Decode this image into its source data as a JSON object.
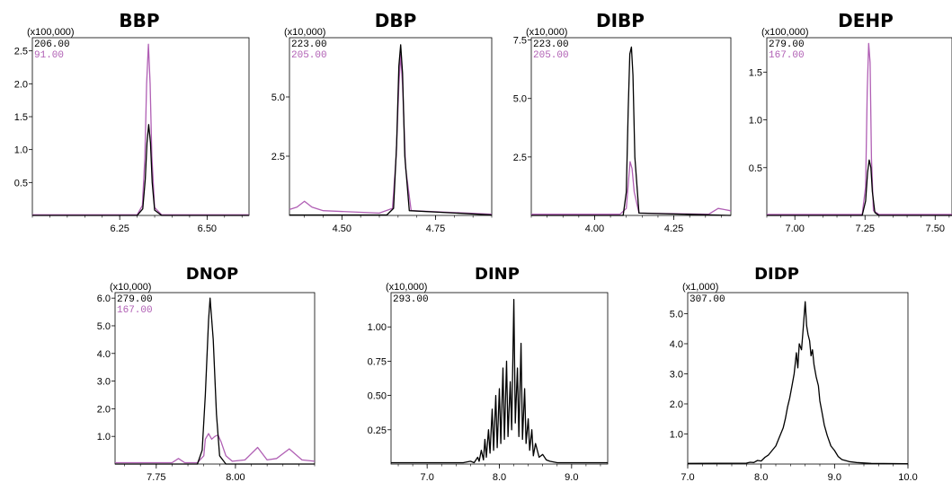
{
  "colors": {
    "trace_black": "#000000",
    "trace_purple": "#b05fb4",
    "axis": "#000000"
  },
  "chart_data": [
    {
      "type": "line",
      "title": "BBP",
      "multiplier": "(x100,000)",
      "xlim": [
        6.0,
        6.62
      ],
      "ylim": [
        0,
        2.7
      ],
      "xticks": [
        6.25,
        6.5
      ],
      "xtick_labels": [
        "6.25",
        "6.50"
      ],
      "yticks": [
        0.5,
        1.0,
        1.5,
        2.0,
        2.5
      ],
      "ytick_labels": [
        "0.5",
        "1.0",
        "1.5",
        "2.0",
        "2.5"
      ],
      "ions": [
        {
          "label": "206.00",
          "color": "#000000"
        },
        {
          "label": "91.00",
          "color": "#b05fb4"
        }
      ],
      "series": [
        {
          "color": "#b05fb4",
          "x": [
            6.0,
            6.3,
            6.315,
            6.322,
            6.327,
            6.332,
            6.337,
            6.342,
            6.35,
            6.37,
            6.62
          ],
          "y": [
            0.01,
            0.01,
            0.15,
            0.9,
            2.0,
            2.6,
            2.0,
            0.9,
            0.12,
            0.01,
            0.01
          ]
        },
        {
          "color": "#000000",
          "x": [
            6.0,
            6.3,
            6.316,
            6.323,
            6.328,
            6.333,
            6.338,
            6.343,
            6.35,
            6.37,
            6.62
          ],
          "y": [
            0.0,
            0.0,
            0.1,
            0.55,
            1.1,
            1.38,
            1.1,
            0.5,
            0.08,
            0.0,
            0.0
          ]
        }
      ]
    },
    {
      "type": "line",
      "title": "DBP",
      "multiplier": "(x10,000)",
      "xlim": [
        4.36,
        4.9
      ],
      "ylim": [
        0,
        7.5
      ],
      "xticks": [
        4.5,
        4.75
      ],
      "xtick_labels": [
        "4.50",
        "4.75"
      ],
      "yticks": [
        2.5,
        5.0
      ],
      "ytick_labels": [
        "2.5",
        "5.0"
      ],
      "ions": [
        {
          "label": "223.00",
          "color": "#000000"
        },
        {
          "label": "205.00",
          "color": "#b05fb4"
        }
      ],
      "series": [
        {
          "color": "#b05fb4",
          "x": [
            4.36,
            4.38,
            4.4,
            4.42,
            4.45,
            4.6,
            4.635,
            4.645,
            4.652,
            4.657,
            4.662,
            4.67,
            4.685,
            4.9
          ],
          "y": [
            0.25,
            0.35,
            0.6,
            0.35,
            0.2,
            0.1,
            0.3,
            2.5,
            5.5,
            6.8,
            5.5,
            2.0,
            0.2,
            0.05
          ]
        },
        {
          "color": "#000000",
          "x": [
            4.36,
            4.62,
            4.638,
            4.646,
            4.652,
            4.657,
            4.662,
            4.668,
            4.68,
            4.9
          ],
          "y": [
            0.02,
            0.02,
            0.3,
            3.0,
            6.3,
            7.2,
            6.0,
            2.5,
            0.2,
            0.02
          ]
        }
      ]
    },
    {
      "type": "line",
      "title": "DIBP",
      "multiplier": "(x10,000)",
      "xlim": [
        3.8,
        4.43
      ],
      "ylim": [
        0,
        7.6
      ],
      "xticks": [
        4.0,
        4.25
      ],
      "xtick_labels": [
        "4.00",
        "4.25"
      ],
      "yticks": [
        2.5,
        5.0,
        7.5
      ],
      "ytick_labels": [
        "2.5",
        "5.0",
        "7.5"
      ],
      "ions": [
        {
          "label": "223.00",
          "color": "#000000"
        },
        {
          "label": "205.00",
          "color": "#b05fb4"
        }
      ],
      "series": [
        {
          "color": "#b05fb4",
          "x": [
            3.8,
            4.08,
            4.1,
            4.107,
            4.112,
            4.118,
            4.125,
            4.14,
            4.36,
            4.39,
            4.41,
            4.43
          ],
          "y": [
            0.05,
            0.05,
            0.3,
            1.5,
            2.3,
            2.0,
            1.0,
            0.1,
            0.05,
            0.3,
            0.25,
            0.2
          ]
        },
        {
          "color": "#000000",
          "x": [
            3.8,
            4.09,
            4.1,
            4.106,
            4.111,
            4.116,
            4.121,
            4.127,
            4.14,
            4.43
          ],
          "y": [
            0.0,
            0.0,
            1.0,
            4.5,
            6.9,
            7.2,
            6.0,
            2.5,
            0.1,
            0.0
          ]
        }
      ]
    },
    {
      "type": "line",
      "title": "DEHP",
      "multiplier": "(x100,000)",
      "xlim": [
        6.9,
        7.56
      ],
      "ylim": [
        0,
        1.86
      ],
      "xticks": [
        7.0,
        7.25,
        7.5
      ],
      "xtick_labels": [
        "7.00",
        "7.25",
        "7.50"
      ],
      "yticks": [
        0.5,
        1.0,
        1.5
      ],
      "ytick_labels": [
        "0.5",
        "1.0",
        "1.5"
      ],
      "ions": [
        {
          "label": "279.00",
          "color": "#000000"
        },
        {
          "label": "167.00",
          "color": "#b05fb4"
        }
      ],
      "series": [
        {
          "color": "#b05fb4",
          "x": [
            6.9,
            7.24,
            7.252,
            7.258,
            7.263,
            7.268,
            7.273,
            7.28,
            7.3,
            7.56
          ],
          "y": [
            0.01,
            0.01,
            0.3,
            1.3,
            1.8,
            1.6,
            0.6,
            0.05,
            0.01,
            0.01
          ]
        },
        {
          "color": "#000000",
          "x": [
            6.9,
            7.24,
            7.252,
            7.259,
            7.265,
            7.271,
            7.276,
            7.285,
            7.3,
            7.56
          ],
          "y": [
            0.0,
            0.0,
            0.15,
            0.45,
            0.58,
            0.5,
            0.25,
            0.03,
            0.0,
            0.0
          ]
        }
      ]
    },
    {
      "type": "line",
      "title": "DNOP",
      "multiplier": "(x10,000)",
      "xlim": [
        7.62,
        8.25
      ],
      "ylim": [
        0,
        6.2
      ],
      "xticks": [
        7.75,
        8.0
      ],
      "xtick_labels": [
        "7.75",
        "8.00"
      ],
      "yticks": [
        1.0,
        2.0,
        3.0,
        4.0,
        5.0,
        6.0
      ],
      "ytick_labels": [
        "1.0",
        "2.0",
        "3.0",
        "4.0",
        "5.0",
        "6.0"
      ],
      "ions": [
        {
          "label": "279.00",
          "color": "#000000"
        },
        {
          "label": "167.00",
          "color": "#b05fb4"
        }
      ],
      "series": [
        {
          "color": "#b05fb4",
          "x": [
            7.62,
            7.8,
            7.82,
            7.84,
            7.88,
            7.9,
            7.905,
            7.915,
            7.925,
            7.935,
            7.945,
            7.955,
            7.97,
            7.99,
            8.03,
            8.07,
            8.1,
            8.13,
            8.17,
            8.21,
            8.25
          ],
          "y": [
            0.05,
            0.05,
            0.2,
            0.05,
            0.05,
            0.3,
            0.9,
            1.1,
            0.9,
            1.0,
            1.05,
            0.8,
            0.3,
            0.1,
            0.15,
            0.6,
            0.15,
            0.2,
            0.55,
            0.15,
            0.1
          ]
        },
        {
          "color": "#000000",
          "x": [
            7.62,
            7.88,
            7.895,
            7.905,
            7.915,
            7.92,
            7.93,
            7.94,
            7.95,
            7.97,
            8.25
          ],
          "y": [
            0.0,
            0.0,
            0.5,
            2.5,
            5.2,
            6.0,
            4.5,
            1.8,
            0.3,
            0.0,
            0.0
          ]
        }
      ]
    },
    {
      "type": "line",
      "title": "DINP",
      "multiplier": "(x10,000)",
      "xlim": [
        6.5,
        9.5
      ],
      "ylim": [
        0,
        1.25
      ],
      "xticks": [
        7.0,
        8.0,
        9.0
      ],
      "xtick_labels": [
        "7.0",
        "8.0",
        "9.0"
      ],
      "yticks": [
        0.25,
        0.5,
        0.75,
        1.0
      ],
      "ytick_labels": [
        "0.25",
        "0.50",
        "0.75",
        "1.00"
      ],
      "ions": [
        {
          "label": "293.00",
          "color": "#000000"
        }
      ],
      "series": [
        {
          "color": "#000000",
          "x": [
            6.5,
            7.5,
            7.6,
            7.65,
            7.7,
            7.72,
            7.75,
            7.78,
            7.8,
            7.82,
            7.85,
            7.87,
            7.9,
            7.92,
            7.95,
            7.97,
            8.0,
            8.02,
            8.05,
            8.07,
            8.1,
            8.12,
            8.15,
            8.17,
            8.2,
            8.22,
            8.25,
            8.27,
            8.3,
            8.32,
            8.35,
            8.37,
            8.4,
            8.42,
            8.45,
            8.47,
            8.5,
            8.55,
            8.6,
            8.65,
            8.7,
            8.8,
            9.0,
            9.5
          ],
          "y": [
            0.01,
            0.01,
            0.02,
            0.01,
            0.05,
            0.02,
            0.1,
            0.03,
            0.18,
            0.05,
            0.25,
            0.08,
            0.4,
            0.1,
            0.5,
            0.12,
            0.55,
            0.15,
            0.7,
            0.18,
            0.75,
            0.2,
            0.6,
            0.25,
            1.2,
            0.3,
            0.7,
            0.2,
            0.88,
            0.18,
            0.55,
            0.15,
            0.33,
            0.1,
            0.25,
            0.06,
            0.15,
            0.05,
            0.07,
            0.03,
            0.02,
            0.01,
            0.01,
            0.01
          ]
        }
      ]
    },
    {
      "type": "line",
      "title": "DIDP",
      "multiplier": "(x1,000)",
      "xlim": [
        7.0,
        10.0
      ],
      "ylim": [
        0,
        5.7
      ],
      "xticks": [
        7.0,
        8.0,
        9.0,
        10.0
      ],
      "xtick_labels": [
        "7.0",
        "8.0",
        "9.0",
        "10.0"
      ],
      "yticks": [
        1.0,
        2.0,
        3.0,
        4.0,
        5.0
      ],
      "ytick_labels": [
        "1.0",
        "2.0",
        "3.0",
        "4.0",
        "5.0"
      ],
      "ions": [
        {
          "label": "307.00",
          "color": "#000000"
        }
      ],
      "series": [
        {
          "color": "#000000",
          "x": [
            7.0,
            7.8,
            7.85,
            7.9,
            7.95,
            8.0,
            8.05,
            8.1,
            8.15,
            8.2,
            8.25,
            8.3,
            8.33,
            8.36,
            8.39,
            8.42,
            8.45,
            8.48,
            8.5,
            8.52,
            8.55,
            8.57,
            8.6,
            8.62,
            8.64,
            8.66,
            8.68,
            8.7,
            8.72,
            8.75,
            8.78,
            8.8,
            8.83,
            8.86,
            8.9,
            8.95,
            9.0,
            9.05,
            9.1,
            9.2,
            9.3,
            9.5,
            10.0
          ],
          "y": [
            0.02,
            0.03,
            0.06,
            0.05,
            0.12,
            0.1,
            0.22,
            0.3,
            0.45,
            0.6,
            0.9,
            1.2,
            1.5,
            1.9,
            2.2,
            2.6,
            3.0,
            3.7,
            3.2,
            4.0,
            3.8,
            4.4,
            5.4,
            4.6,
            4.3,
            4.1,
            3.6,
            3.8,
            3.3,
            2.9,
            2.6,
            2.1,
            1.7,
            1.3,
            0.95,
            0.6,
            0.45,
            0.25,
            0.15,
            0.08,
            0.05,
            0.02,
            0.01
          ]
        }
      ]
    }
  ]
}
